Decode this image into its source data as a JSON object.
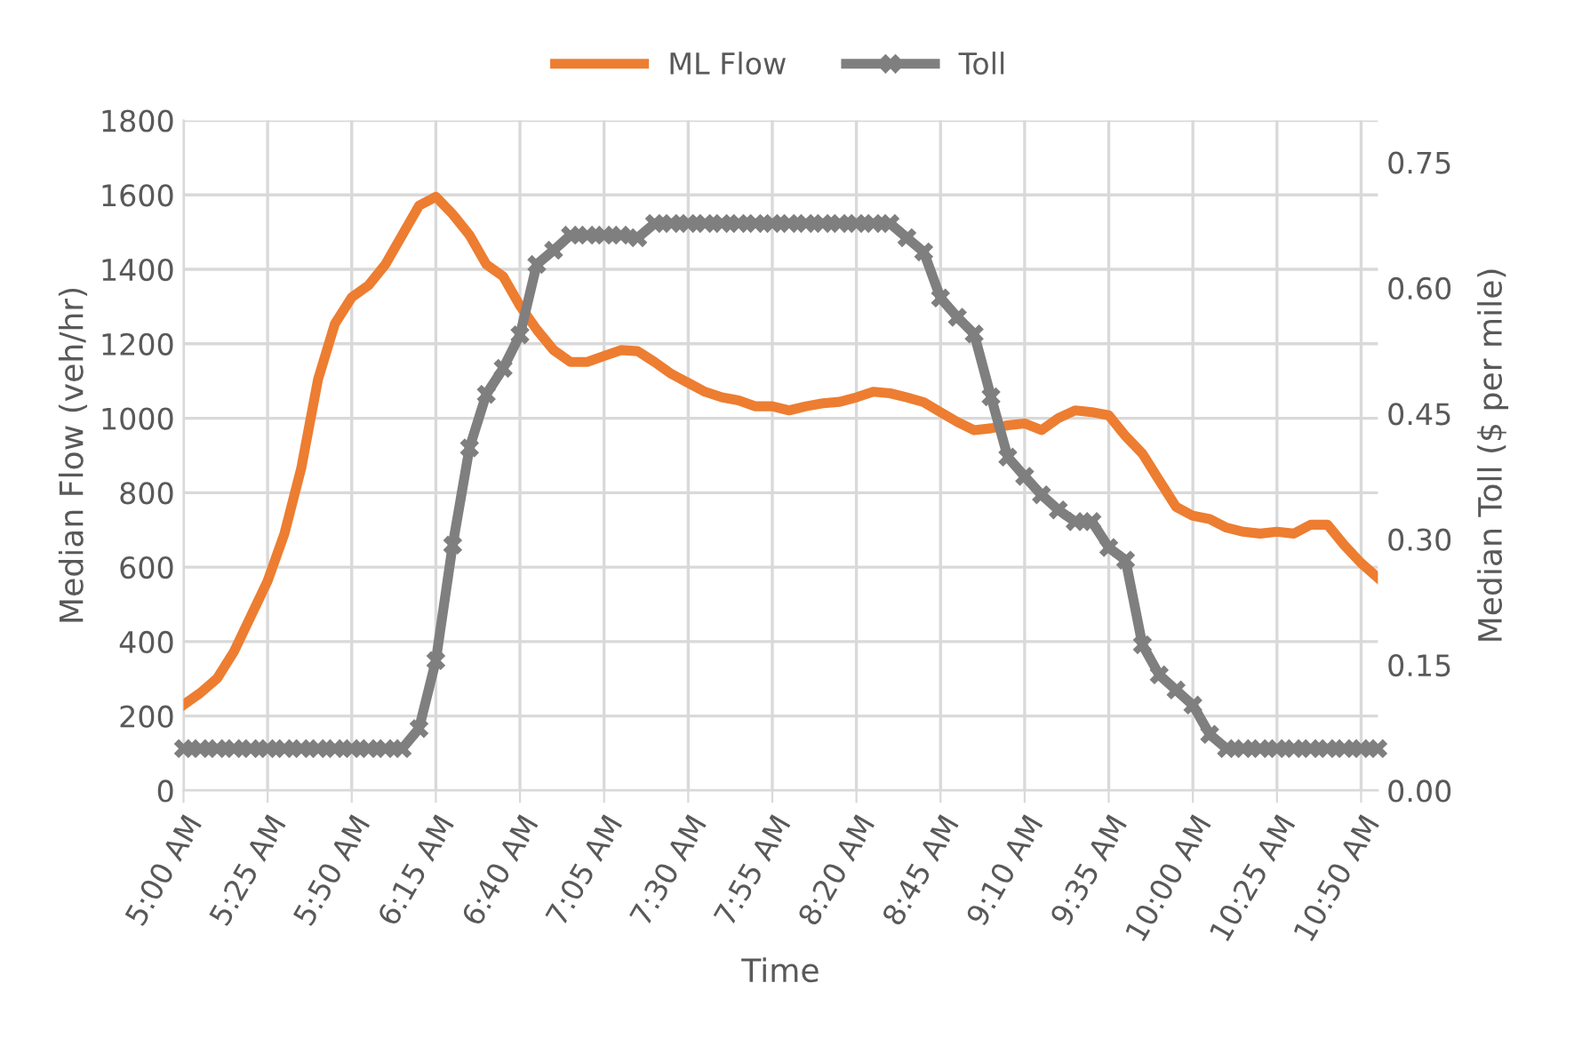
{
  "chart_data": {
    "type": "line",
    "xlabel": "Time",
    "ylabel": "Median Flow (veh/hr)",
    "y2label": "Median Toll ($ per mile)",
    "categories": [
      "5:00 AM",
      null,
      null,
      null,
      null,
      "5:25 AM",
      null,
      null,
      null,
      null,
      "5:50 AM",
      null,
      null,
      null,
      null,
      "6:15 AM",
      null,
      null,
      null,
      null,
      "6:40 AM",
      null,
      null,
      null,
      null,
      "7:05 AM",
      null,
      null,
      null,
      null,
      "7:30 AM",
      null,
      null,
      null,
      null,
      "7:55 AM",
      null,
      null,
      null,
      null,
      "8:20 AM",
      null,
      null,
      null,
      null,
      "8:45 AM",
      null,
      null,
      null,
      null,
      "9:10 AM",
      null,
      null,
      null,
      null,
      "9:35 AM",
      null,
      null,
      null,
      null,
      "10:00 AM",
      null,
      null,
      null,
      null,
      "10:25 AM",
      null,
      null,
      null,
      null,
      "10:50 AM",
      null
    ],
    "series": [
      {
        "name": "ML Flow",
        "color": "#ed7d31",
        "marker": "none",
        "values": [
          230,
          262,
          301,
          373,
          468,
          563,
          690,
          866,
          1105,
          1254,
          1325,
          1357,
          1413,
          1492,
          1571,
          1595,
          1548,
          1492,
          1413,
          1381,
          1302,
          1238,
          1183,
          1151,
          1151,
          1167,
          1183,
          1180,
          1151,
          1119,
          1095,
          1071,
          1056,
          1048,
          1032,
          1032,
          1021,
          1032,
          1040,
          1044,
          1056,
          1071,
          1067,
          1056,
          1043,
          1016,
          990,
          968,
          973,
          981,
          986,
          968,
          1000,
          1021,
          1016,
          1008,
          952,
          905,
          833,
          762,
          738,
          729,
          706,
          695,
          690,
          695,
          690,
          714,
          714,
          659,
          611,
          571
        ]
      },
      {
        "name": "Toll",
        "color": "#7f7f7f",
        "marker": "cross",
        "axis": "y2",
        "values": [
          0.05,
          0.05,
          0.05,
          0.05,
          0.05,
          0.05,
          0.05,
          0.05,
          0.05,
          0.05,
          0.05,
          0.05,
          0.05,
          0.05,
          0.074,
          0.155,
          0.293,
          0.409,
          0.473,
          0.504,
          0.544,
          0.628,
          0.645,
          0.663,
          0.663,
          0.663,
          0.663,
          0.66,
          0.677,
          0.677,
          0.677,
          0.677,
          0.677,
          0.677,
          0.677,
          0.677,
          0.677,
          0.677,
          0.677,
          0.677,
          0.677,
          0.677,
          0.677,
          0.66,
          0.643,
          0.588,
          0.565,
          0.545,
          0.47,
          0.398,
          0.375,
          0.353,
          0.335,
          0.321,
          0.321,
          0.29,
          0.275,
          0.174,
          0.138,
          0.12,
          0.102,
          0.067,
          0.05,
          0.05,
          0.05,
          0.05,
          0.05,
          0.05,
          0.05,
          0.05,
          0.05,
          0.05
        ]
      }
    ],
    "ylim": [
      0,
      1800
    ],
    "yticks": [
      0,
      200,
      400,
      600,
      800,
      1000,
      1200,
      1400,
      1600,
      1800
    ],
    "y2lim": [
      0,
      0.8
    ],
    "y2ticks": [
      {
        "value": 0,
        "label": "0.00"
      },
      {
        "value": 0.15,
        "label": "0.15"
      },
      {
        "value": 0.3,
        "label": "0.30"
      },
      {
        "value": 0.45,
        "label": "0.45"
      },
      {
        "value": 0.6,
        "label": "0.60"
      },
      {
        "value": 0.75,
        "label": "0.75"
      }
    ],
    "grid": true,
    "legend": "top",
    "line_style": "solid"
  }
}
